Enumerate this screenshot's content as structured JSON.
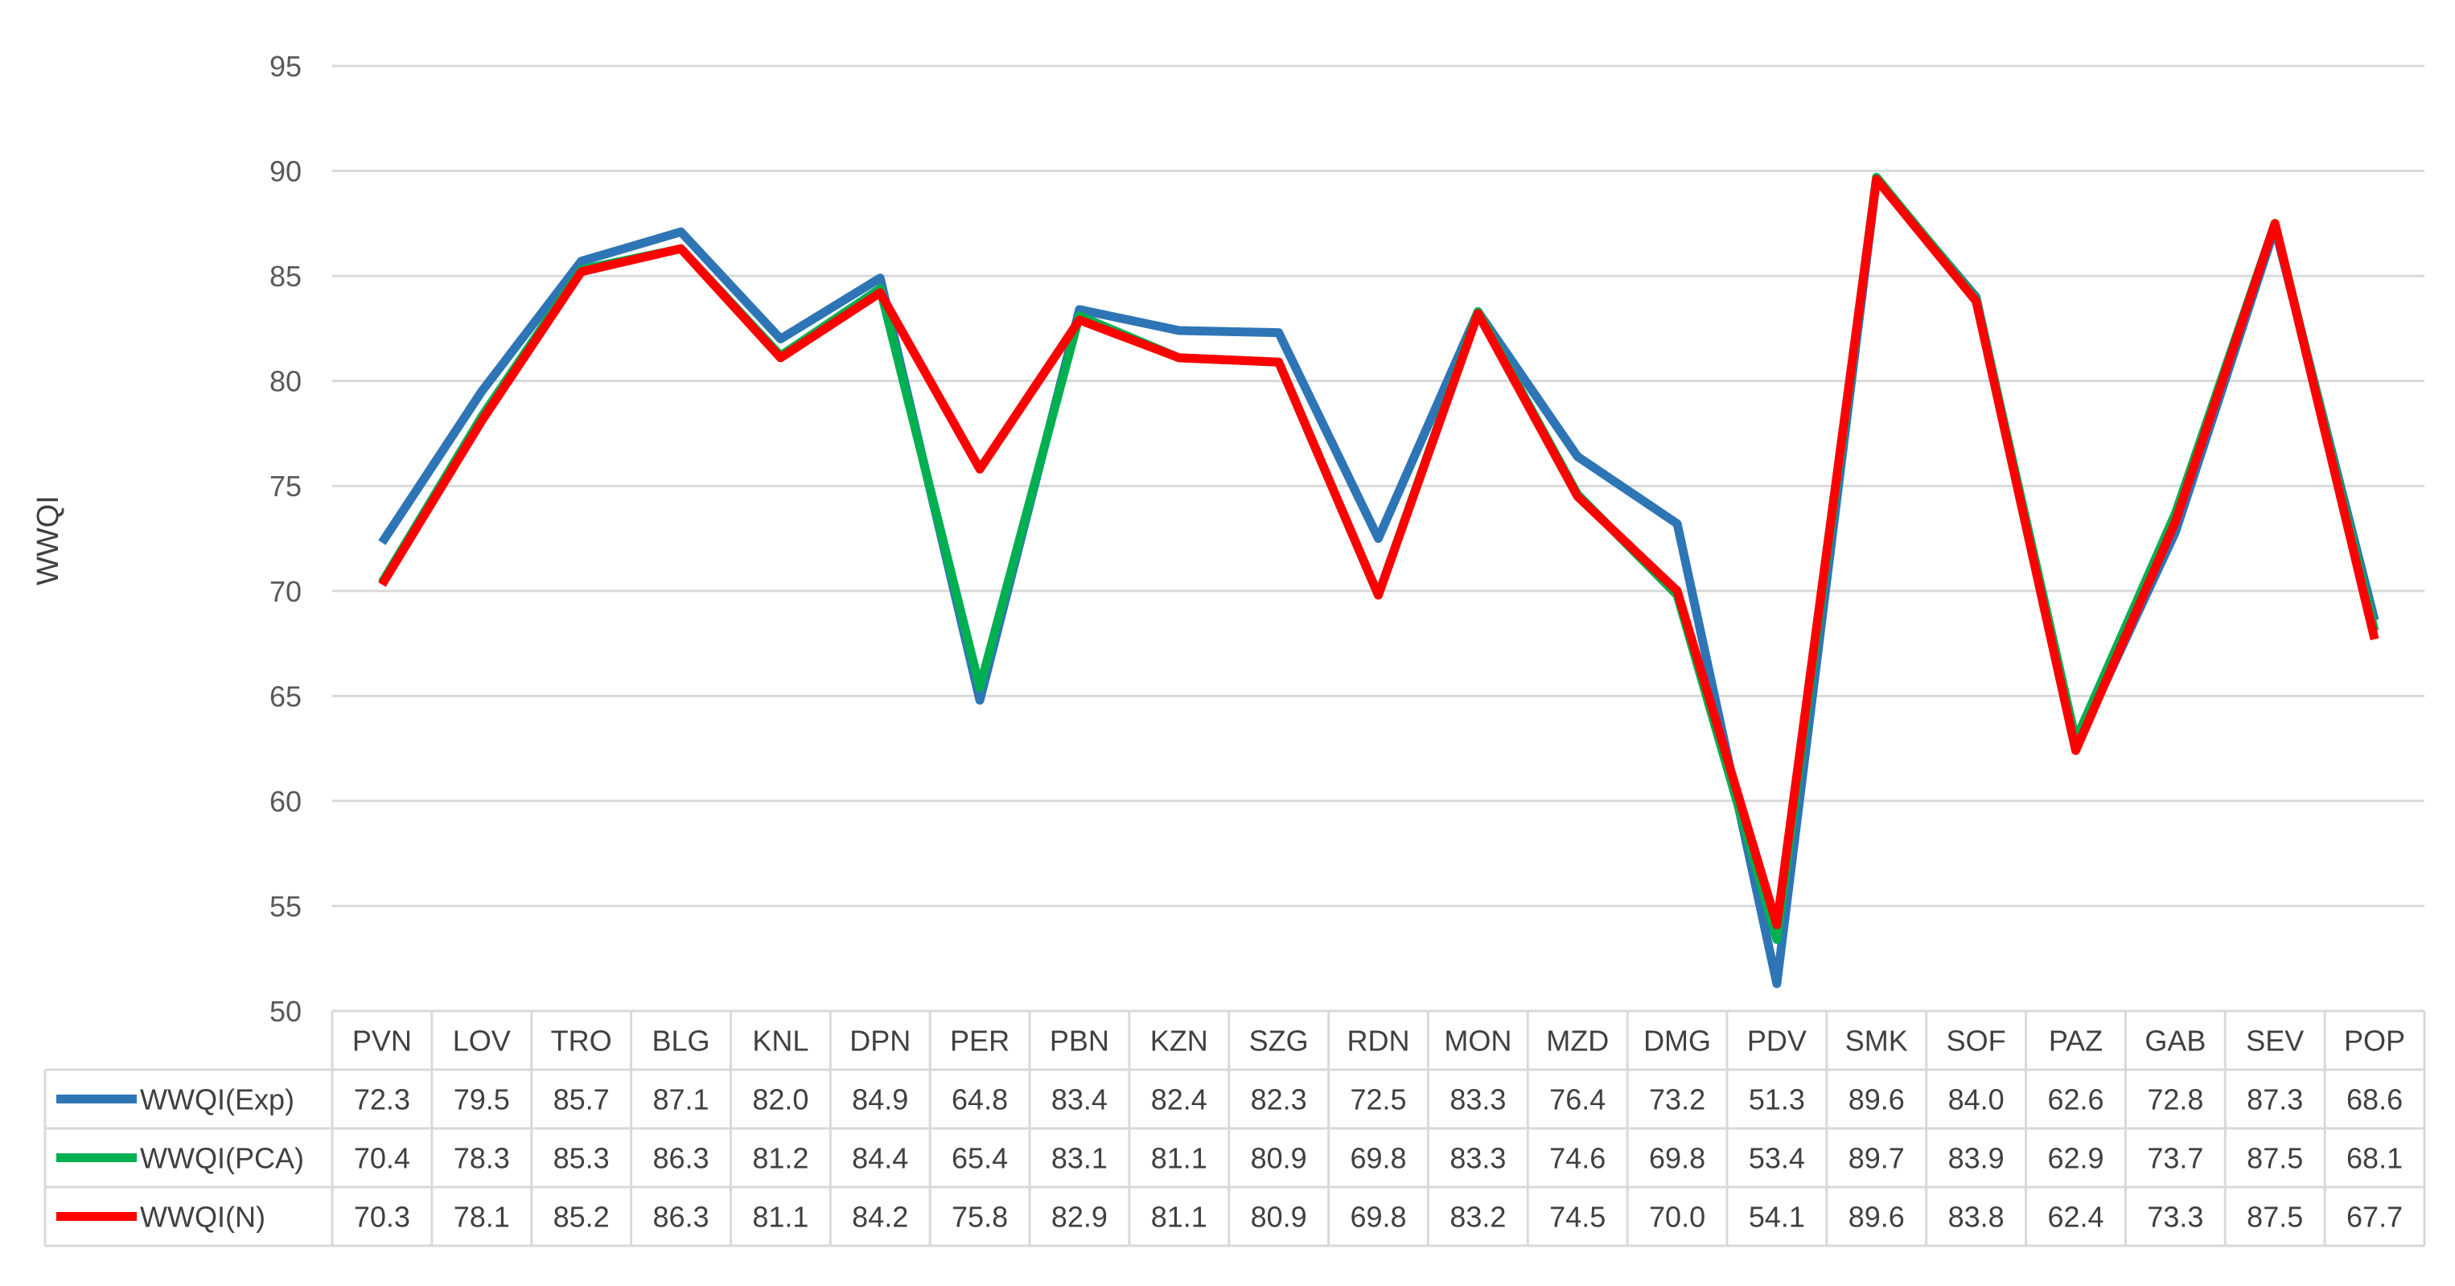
{
  "chart_data": {
    "type": "line",
    "title": "",
    "ylabel": "WWQI",
    "xlabel": "",
    "ylim": [
      50,
      95
    ],
    "yticks": [
      50,
      55,
      60,
      65,
      70,
      75,
      80,
      85,
      90,
      95
    ],
    "grid": true,
    "legend": "data-table",
    "categories": [
      "PVN",
      "LOV",
      "TRO",
      "BLG",
      "KNL",
      "DPN",
      "PER",
      "PBN",
      "KZN",
      "SZG",
      "RDN",
      "MON",
      "MZD",
      "DMG",
      "PDV",
      "SMK",
      "SOF",
      "PAZ",
      "GAB",
      "SEV",
      "POP"
    ],
    "series": [
      {
        "name": "WWQI(Exp)",
        "color": "#2E75B6",
        "values": [
          72.3,
          79.5,
          85.7,
          87.1,
          82.0,
          84.9,
          64.8,
          83.4,
          82.4,
          82.3,
          72.5,
          83.3,
          76.4,
          73.2,
          51.3,
          89.6,
          84.0,
          62.6,
          72.8,
          87.3,
          68.6
        ],
        "labels": [
          "72.3",
          "79.5",
          "85.7",
          "87.1",
          "82.0",
          "84.9",
          "64.8",
          "83.4",
          "82.4",
          "82.3",
          "72.5",
          "83.3",
          "76.4",
          "73.2",
          "51.3",
          "89.6",
          "84.0",
          "62.6",
          "72.8",
          "87.3",
          "68.6"
        ]
      },
      {
        "name": "WWQI(PCA)",
        "color": "#00B050",
        "values": [
          70.4,
          78.3,
          85.3,
          86.3,
          81.2,
          84.4,
          65.4,
          83.1,
          81.1,
          80.9,
          69.8,
          83.3,
          74.6,
          69.8,
          53.4,
          89.7,
          83.9,
          62.9,
          73.7,
          87.5,
          68.1
        ],
        "labels": [
          "70.4",
          "78.3",
          "85.3",
          "86.3",
          "81.2",
          "84.4",
          "65.4",
          "83.1",
          "81.1",
          "80.9",
          "69.8",
          "83.3",
          "74.6",
          "69.8",
          "53.4",
          "89.7",
          "83.9",
          "62.9",
          "73.7",
          "87.5",
          "68.1"
        ]
      },
      {
        "name": "WWQI(N)",
        "color": "#FF0000",
        "values": [
          70.3,
          78.1,
          85.2,
          86.3,
          81.1,
          84.2,
          75.8,
          82.9,
          81.1,
          80.9,
          69.8,
          83.2,
          74.5,
          70.0,
          54.1,
          89.6,
          83.8,
          62.4,
          73.3,
          87.5,
          67.7
        ],
        "labels": [
          "70.3",
          "78.1",
          "85.2",
          "86.3",
          "81.1",
          "84.2",
          "75.8",
          "82.9",
          "81.1",
          "80.9",
          "69.8",
          "83.2",
          "74.5",
          "70.0",
          "54.1",
          "89.6",
          "83.8",
          "62.4",
          "73.3",
          "87.5",
          "67.7"
        ]
      }
    ]
  }
}
